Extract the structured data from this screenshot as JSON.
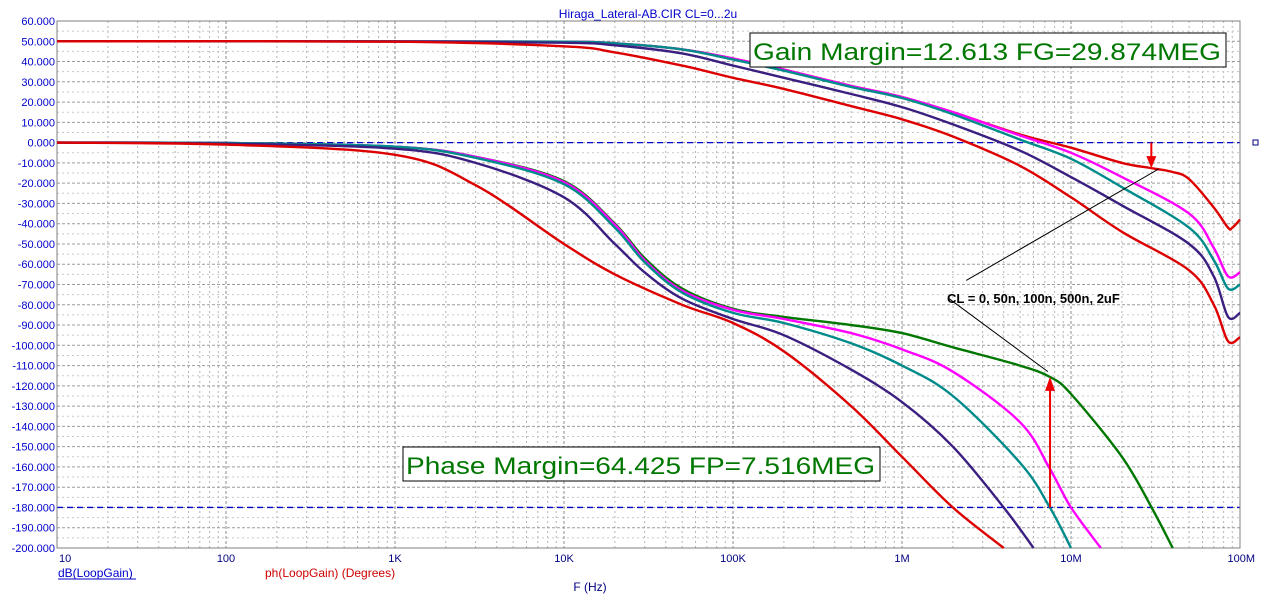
{
  "chart_data": {
    "type": "line",
    "title": "Hiraga_Lateral-AB.CIR CL=0...2u",
    "xlabel": "F (Hz)",
    "x_scale": "log",
    "xlim": [
      10,
      100000000
    ],
    "ylim": [
      -200,
      60
    ],
    "grid": true,
    "x_ticks": [
      {
        "value": 10,
        "label": "10"
      },
      {
        "value": 100,
        "label": "100"
      },
      {
        "value": 1000,
        "label": "1K"
      },
      {
        "value": 10000,
        "label": "10K"
      },
      {
        "value": 100000,
        "label": "100K"
      },
      {
        "value": 1000000,
        "label": "1M"
      },
      {
        "value": 10000000,
        "label": "10M"
      },
      {
        "value": 100000000,
        "label": "100M"
      }
    ],
    "y_ticks": [
      {
        "value": 60,
        "label": "60.000"
      },
      {
        "value": 50,
        "label": "50.000"
      },
      {
        "value": 40,
        "label": "40.000"
      },
      {
        "value": 30,
        "label": "30.000"
      },
      {
        "value": 20,
        "label": "20.000"
      },
      {
        "value": 10,
        "label": "10.000"
      },
      {
        "value": 0,
        "label": "0.000"
      },
      {
        "value": -10,
        "label": "-10.000"
      },
      {
        "value": -20,
        "label": "-20.000"
      },
      {
        "value": -30,
        "label": "-30.000"
      },
      {
        "value": -40,
        "label": "-40.000"
      },
      {
        "value": -50,
        "label": "-50.000"
      },
      {
        "value": -60,
        "label": "-60.000"
      },
      {
        "value": -70,
        "label": "-70.000"
      },
      {
        "value": -80,
        "label": "-80.000"
      },
      {
        "value": -90,
        "label": "-90.000"
      },
      {
        "value": -100,
        "label": "-100.000"
      },
      {
        "value": -110,
        "label": "-110.000"
      },
      {
        "value": -120,
        "label": "-120.000"
      },
      {
        "value": -130,
        "label": "-130.000"
      },
      {
        "value": -140,
        "label": "-140.000"
      },
      {
        "value": -150,
        "label": "-150.000"
      },
      {
        "value": -160,
        "label": "-160.000"
      },
      {
        "value": -170,
        "label": "-170.000"
      },
      {
        "value": -180,
        "label": "-180.000"
      },
      {
        "value": -190,
        "label": "-190.000"
      },
      {
        "value": -200,
        "label": "-200.000"
      }
    ],
    "reference_lines": [
      {
        "y": 0,
        "color": "#0000cc"
      },
      {
        "y": -180,
        "color": "#0000cc"
      }
    ],
    "legend": [
      {
        "label": "dB(LoopGain)",
        "color": "#0000cc"
      },
      {
        "label": "ph(LoopGain) (Degrees)",
        "color": "#cc0000"
      }
    ],
    "annotations": {
      "gain_margin": {
        "text": "Gain Margin=12.613 FG=29.874MEG",
        "color": "#007700",
        "marker_x": 29874000,
        "marker_y": -12.6
      },
      "phase_margin": {
        "text": "Phase Margin=64.425 FP=7.516MEG",
        "color": "#007700",
        "marker_x": 7516000,
        "marker_y": -115.6
      },
      "curve_label": {
        "text": "CL = 0, 50n, 100n, 500n, 2uF",
        "leader_start": [
          2400000,
          -68
        ],
        "leader_end_gain": [
          33000000,
          -13
        ],
        "leader_end_phase": [
          7300000,
          -113
        ]
      }
    },
    "series": [
      {
        "color": "#dd0000",
        "points": [
          [
            10,
            50
          ],
          [
            1000,
            50
          ],
          [
            10000,
            49.8
          ],
          [
            20000,
            49
          ],
          [
            50000,
            46
          ],
          [
            100000,
            41.5
          ],
          [
            200000,
            36
          ],
          [
            500000,
            28
          ],
          [
            1000000,
            22.5
          ],
          [
            2000000,
            15
          ],
          [
            5000000,
            4
          ],
          [
            10000000,
            -2.5
          ],
          [
            20000000,
            -10
          ],
          [
            30000000,
            -12.6
          ],
          [
            40000000,
            -14.5
          ],
          [
            50000000,
            -18
          ],
          [
            70000000,
            -32
          ],
          [
            85000000,
            -42
          ],
          [
            90000000,
            -42
          ],
          [
            100000000,
            -38
          ]
        ]
      },
      {
        "color": "#ff00ff",
        "points": [
          [
            10,
            50
          ],
          [
            1000,
            50
          ],
          [
            10000,
            49.8
          ],
          [
            20000,
            49
          ],
          [
            50000,
            46
          ],
          [
            100000,
            41.5
          ],
          [
            200000,
            36
          ],
          [
            500000,
            28
          ],
          [
            1000000,
            22.5
          ],
          [
            2000000,
            15
          ],
          [
            5000000,
            3.5
          ],
          [
            10000000,
            -5
          ],
          [
            20000000,
            -17
          ],
          [
            50000000,
            -35
          ],
          [
            70000000,
            -52
          ],
          [
            85000000,
            -66
          ],
          [
            100000000,
            -64
          ]
        ]
      },
      {
        "color": "#008b8b",
        "points": [
          [
            10,
            50
          ],
          [
            1000,
            50
          ],
          [
            10000,
            49.8
          ],
          [
            20000,
            49
          ],
          [
            50000,
            46
          ],
          [
            100000,
            41
          ],
          [
            200000,
            35.5
          ],
          [
            500000,
            27.5
          ],
          [
            1000000,
            22
          ],
          [
            2000000,
            14
          ],
          [
            5000000,
            1.5
          ],
          [
            10000000,
            -8
          ],
          [
            20000000,
            -22
          ],
          [
            50000000,
            -42
          ],
          [
            70000000,
            -58
          ],
          [
            85000000,
            -72
          ],
          [
            100000000,
            -70
          ]
        ]
      },
      {
        "color": "#3a1f80",
        "points": [
          [
            10,
            50
          ],
          [
            1000,
            49.9
          ],
          [
            10000,
            49.3
          ],
          [
            20000,
            48
          ],
          [
            50000,
            44
          ],
          [
            100000,
            38
          ],
          [
            200000,
            32
          ],
          [
            500000,
            24
          ],
          [
            1000000,
            17.5
          ],
          [
            2000000,
            9
          ],
          [
            5000000,
            -4
          ],
          [
            10000000,
            -17
          ],
          [
            20000000,
            -31
          ],
          [
            50000000,
            -50
          ],
          [
            70000000,
            -66
          ],
          [
            85000000,
            -86
          ],
          [
            100000000,
            -84
          ]
        ]
      },
      {
        "color": "#dd0000",
        "points": [
          [
            10,
            50
          ],
          [
            1000,
            49.8
          ],
          [
            10000,
            47.5
          ],
          [
            20000,
            44.5
          ],
          [
            50000,
            38
          ],
          [
            100000,
            32
          ],
          [
            200000,
            26.5
          ],
          [
            500000,
            18
          ],
          [
            1000000,
            11.5
          ],
          [
            2000000,
            3
          ],
          [
            5000000,
            -11.5
          ],
          [
            10000000,
            -27
          ],
          [
            20000000,
            -44
          ],
          [
            50000000,
            -63
          ],
          [
            70000000,
            -80
          ],
          [
            85000000,
            -98
          ],
          [
            100000000,
            -96
          ]
        ]
      },
      {
        "color": "#007700",
        "points": [
          [
            10,
            0
          ],
          [
            100,
            -0.2
          ],
          [
            1000,
            -2
          ],
          [
            3000,
            -7
          ],
          [
            10000,
            -19
          ],
          [
            20000,
            -40
          ],
          [
            30000,
            -57
          ],
          [
            50000,
            -72
          ],
          [
            100000,
            -82
          ],
          [
            200000,
            -86
          ],
          [
            500000,
            -90
          ],
          [
            1000000,
            -94
          ],
          [
            2000000,
            -101
          ],
          [
            5000000,
            -110
          ],
          [
            7500000,
            -115.6
          ],
          [
            10000000,
            -124
          ],
          [
            20000000,
            -155
          ],
          [
            30000000,
            -180
          ],
          [
            40000000,
            -200
          ]
        ]
      },
      {
        "color": "#ff00ff",
        "points": [
          [
            10,
            0
          ],
          [
            100,
            -0.2
          ],
          [
            1000,
            -2
          ],
          [
            3000,
            -7
          ],
          [
            10000,
            -19.5
          ],
          [
            20000,
            -40.5
          ],
          [
            30000,
            -58
          ],
          [
            50000,
            -73
          ],
          [
            100000,
            -82.5
          ],
          [
            200000,
            -87
          ],
          [
            500000,
            -94
          ],
          [
            1000000,
            -102
          ],
          [
            2000000,
            -113
          ],
          [
            5000000,
            -138
          ],
          [
            7500000,
            -161
          ],
          [
            10000000,
            -180
          ],
          [
            15000000,
            -200
          ]
        ]
      },
      {
        "color": "#008b8b",
        "points": [
          [
            10,
            0
          ],
          [
            100,
            -0.2
          ],
          [
            1000,
            -2
          ],
          [
            3000,
            -7.5
          ],
          [
            10000,
            -20.5
          ],
          [
            20000,
            -42
          ],
          [
            30000,
            -59
          ],
          [
            50000,
            -74
          ],
          [
            100000,
            -84
          ],
          [
            200000,
            -89
          ],
          [
            500000,
            -99
          ],
          [
            1000000,
            -110
          ],
          [
            2000000,
            -125
          ],
          [
            5000000,
            -158
          ],
          [
            7500000,
            -180
          ],
          [
            10000000,
            -200
          ]
        ]
      },
      {
        "color": "#3a1f80",
        "points": [
          [
            10,
            0
          ],
          [
            100,
            -0.5
          ],
          [
            1000,
            -3
          ],
          [
            3000,
            -10
          ],
          [
            10000,
            -27
          ],
          [
            20000,
            -50
          ],
          [
            30000,
            -64
          ],
          [
            50000,
            -77
          ],
          [
            100000,
            -87
          ],
          [
            200000,
            -95
          ],
          [
            500000,
            -112
          ],
          [
            1000000,
            -128
          ],
          [
            2000000,
            -150
          ],
          [
            4000000,
            -180
          ],
          [
            6000000,
            -200
          ]
        ]
      },
      {
        "color": "#dd0000",
        "points": [
          [
            10,
            0
          ],
          [
            100,
            -1
          ],
          [
            1000,
            -6
          ],
          [
            3000,
            -21
          ],
          [
            10000,
            -50
          ],
          [
            20000,
            -65
          ],
          [
            50000,
            -80
          ],
          [
            100000,
            -89
          ],
          [
            200000,
            -103
          ],
          [
            500000,
            -130
          ],
          [
            1000000,
            -155
          ],
          [
            2000000,
            -180
          ],
          [
            4000000,
            -200
          ]
        ]
      }
    ]
  }
}
